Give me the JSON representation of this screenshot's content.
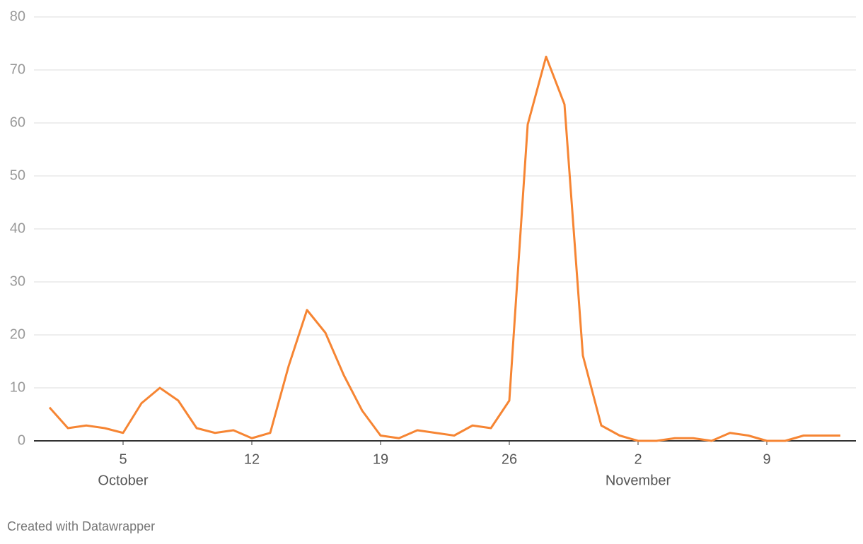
{
  "chart_data": {
    "type": "line",
    "x": [
      "10-01",
      "10-02",
      "10-03",
      "10-04",
      "10-05",
      "10-06",
      "10-07",
      "10-08",
      "10-09",
      "10-10",
      "10-11",
      "10-12",
      "10-13",
      "10-14",
      "10-15",
      "10-16",
      "10-17",
      "10-18",
      "10-19",
      "10-20",
      "10-21",
      "10-22",
      "10-23",
      "10-24",
      "10-25",
      "10-26",
      "10-27",
      "10-28",
      "10-29",
      "10-30",
      "10-31",
      "11-01",
      "11-02",
      "11-03",
      "11-04",
      "11-05",
      "11-06",
      "11-07",
      "11-08",
      "11-09",
      "11-10",
      "11-11",
      "11-12",
      "11-13"
    ],
    "series": [
      {
        "color": "#f68533",
        "values": [
          6.3,
          2.4,
          2.9,
          2.4,
          1.5,
          7.1,
          10,
          7.6,
          2.4,
          1.5,
          2,
          0.5,
          1.5,
          14.1,
          24.7,
          20.4,
          12.4,
          5.7,
          1,
          0.5,
          2,
          1.5,
          1,
          2.9,
          2.4,
          7.6,
          59.7,
          72.5,
          63.5,
          16.1,
          2.9,
          1,
          0,
          0,
          0.5,
          0.5,
          0,
          1.5,
          1,
          0,
          0,
          1,
          1,
          1
        ]
      }
    ],
    "ylim": [
      0,
      80
    ],
    "yticks": [
      0,
      10,
      20,
      30,
      40,
      50,
      60,
      70,
      80
    ],
    "grid": true,
    "xticks": [
      {
        "value": "10-05",
        "label": "5"
      },
      {
        "value": "10-12",
        "label": "12"
      },
      {
        "value": "10-19",
        "label": "19"
      },
      {
        "value": "10-26",
        "label": "26"
      },
      {
        "value": "11-02",
        "label": "2"
      },
      {
        "value": "11-09",
        "label": "9"
      }
    ],
    "month_labels": [
      {
        "value": "10-05",
        "label": "October"
      },
      {
        "value": "11-02",
        "label": "November"
      }
    ],
    "footer": "Created with Datawrapper"
  }
}
